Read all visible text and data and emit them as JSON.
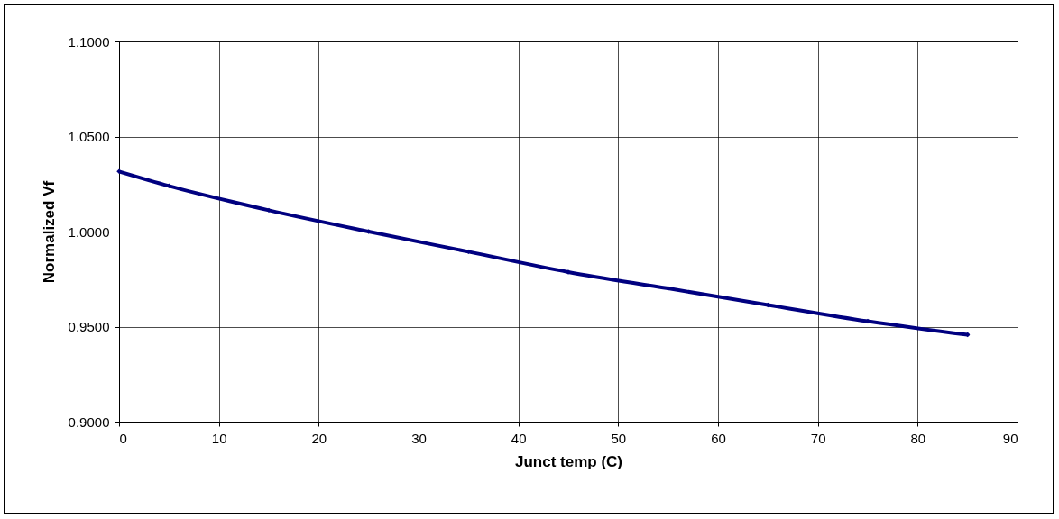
{
  "chart_data": {
    "type": "line",
    "xlabel": "Junct temp (C)",
    "ylabel": "Normalized Vf",
    "x": [
      0,
      5,
      15,
      25,
      35,
      45,
      55,
      65,
      75,
      85
    ],
    "series": [
      {
        "color": "#000080",
        "values": [
          1.0316,
          1.024,
          1.0112,
          1.0,
          0.9894,
          0.9787,
          0.9701,
          0.9614,
          0.9528,
          0.9457
        ]
      }
    ],
    "xlim": [
      0,
      90
    ],
    "xticks": [
      0,
      10,
      20,
      30,
      40,
      50,
      60,
      70,
      80,
      90
    ],
    "ylim": [
      0.9,
      1.1
    ],
    "yticks": [
      {
        "value": 0.9,
        "label": "0.9000"
      },
      {
        "value": 0.95,
        "label": "0.9500"
      },
      {
        "value": 1.0,
        "label": "1.0000"
      },
      {
        "value": 1.05,
        "label": "1.0500"
      },
      {
        "value": 1.1,
        "label": "1.1000"
      }
    ],
    "grid": true,
    "marker": "diamond",
    "legend": false
  }
}
